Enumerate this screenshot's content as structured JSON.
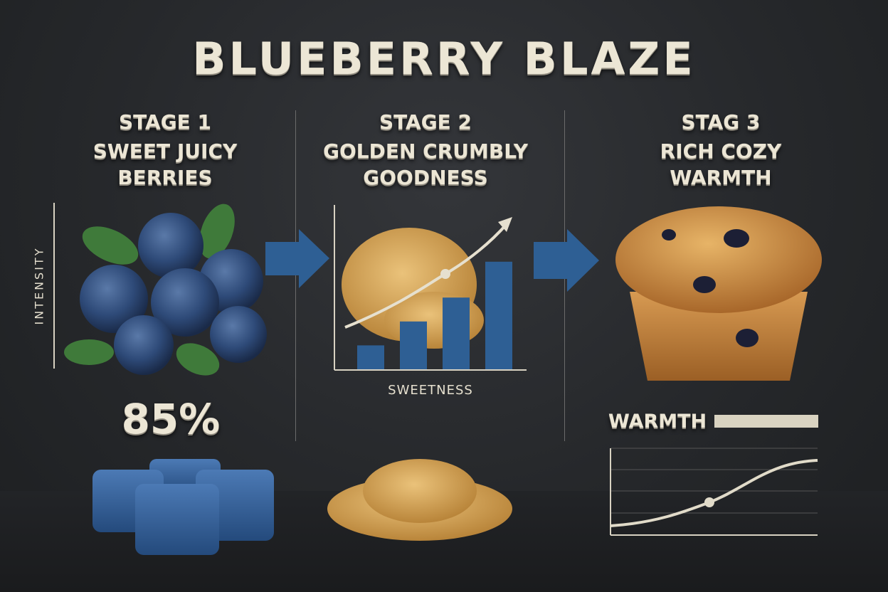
{
  "title": "BLUEBERRY BLAZE",
  "stages": [
    {
      "label": "STAGE 1",
      "line1": "SWEET JUICY",
      "line2": "BERRIES"
    },
    {
      "label": "STAGE 2",
      "line1": "GOLDEN CRUMBLY",
      "line2": "GOODNESS"
    },
    {
      "label": "STAG 3",
      "line1": "RICH COZY",
      "line2": "WARMTH"
    }
  ],
  "stage1": {
    "axis_label": "INTENSITY",
    "percent": "85%"
  },
  "stage2": {
    "axis_label": "SWEETNESS",
    "bar_levels": [
      0.2,
      0.4,
      0.6,
      0.9
    ]
  },
  "stage3": {
    "meter_label": "WARMTH",
    "warmth_level": 1.0
  },
  "colors": {
    "background": "#26282b",
    "text": "#ece6d5",
    "accent_blue": "#2e5f94",
    "crumb": "#d8a64e",
    "muffin": "#c98a3c"
  }
}
